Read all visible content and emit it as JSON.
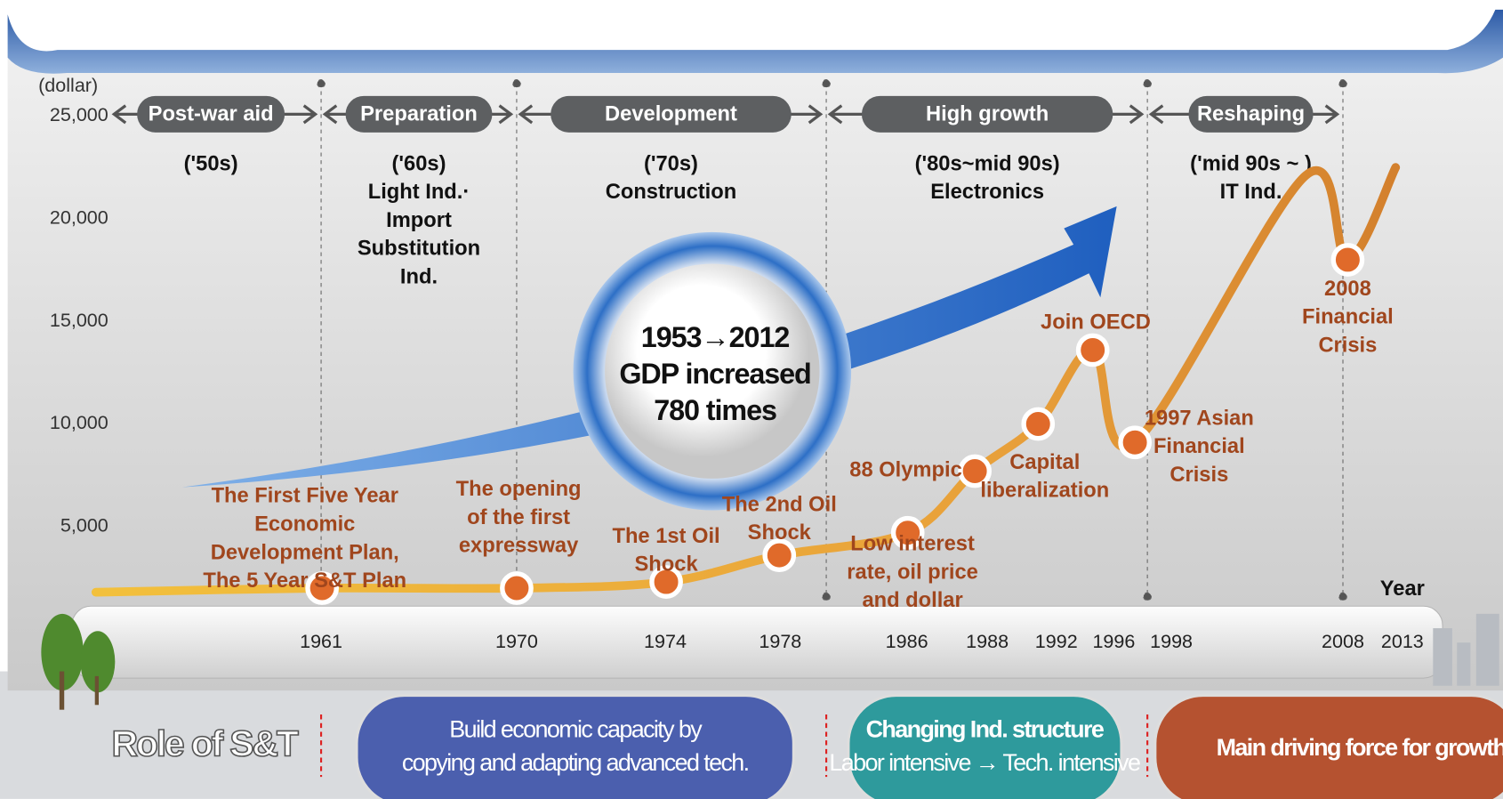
{
  "chart_data": {
    "type": "line",
    "y_label": "(dollar)",
    "x_label": "Year",
    "categories": [
      null,
      "1961",
      "1970",
      "1974",
      "1978",
      "1986",
      "1988",
      "1992",
      "1996",
      "1998",
      null,
      "2008",
      "2013"
    ],
    "values": [
      1800,
      2000,
      2000,
      2300,
      3600,
      4700,
      7700,
      10000,
      13600,
      9100,
      22100,
      18000,
      22500
    ],
    "ylim": [
      0,
      25000
    ],
    "yticks": [
      {
        "value": 5000,
        "label": "5,000"
      },
      {
        "value": 10000,
        "label": "10,000"
      },
      {
        "value": 15000,
        "label": "15,000"
      },
      {
        "value": 20000,
        "label": "20,000"
      },
      {
        "value": 25000,
        "label": "25,000"
      }
    ],
    "color": "#e9a93a",
    "eras": [
      {
        "phase": "Post-war aid",
        "period": "('50s)"
      },
      {
        "phase": "Preparation",
        "period": "('60s)",
        "industry": [
          "Light Ind.·",
          "Import",
          "Substitution",
          "Ind."
        ]
      },
      {
        "phase": "Development",
        "period": "('70s)",
        "industry": [
          "Construction"
        ]
      },
      {
        "phase": "High growth",
        "period": "('80s~mid 90s)",
        "industry": [
          "Electronics"
        ]
      },
      {
        "phase": "Reshaping",
        "period": "('mid 90s ~ )",
        "industry": [
          "IT Ind."
        ]
      }
    ],
    "annotations": [
      [
        "The First Five Year",
        "Economic",
        "Development Plan,",
        "The 5 Year S&T Plan"
      ],
      [
        "The opening",
        "of  the first",
        "expressway"
      ],
      [
        "The 1st Oil",
        "Shock"
      ],
      [
        "The 2nd Oil",
        "Shock"
      ],
      [
        "Low interest",
        "rate, oil price",
        "and dollar"
      ],
      [
        "88 Olympic"
      ],
      [
        "Capital",
        "liberalization"
      ],
      [
        "Join OECD"
      ],
      [
        "1997 Asian",
        "Financial",
        "Crisis"
      ],
      [
        "2008",
        "Financial",
        "Crisis"
      ]
    ],
    "highlight": [
      "1953→2012",
      "GDP increased",
      "780 times"
    ],
    "role_title": "Role of S&T",
    "roles": [
      [
        "Build economic capacity by",
        "copying and adapting advanced tech."
      ],
      [
        "Changing Ind. structure",
        "Labor intensive → Tech. intensive"
      ],
      [
        "Main driving force for growth"
      ]
    ]
  }
}
